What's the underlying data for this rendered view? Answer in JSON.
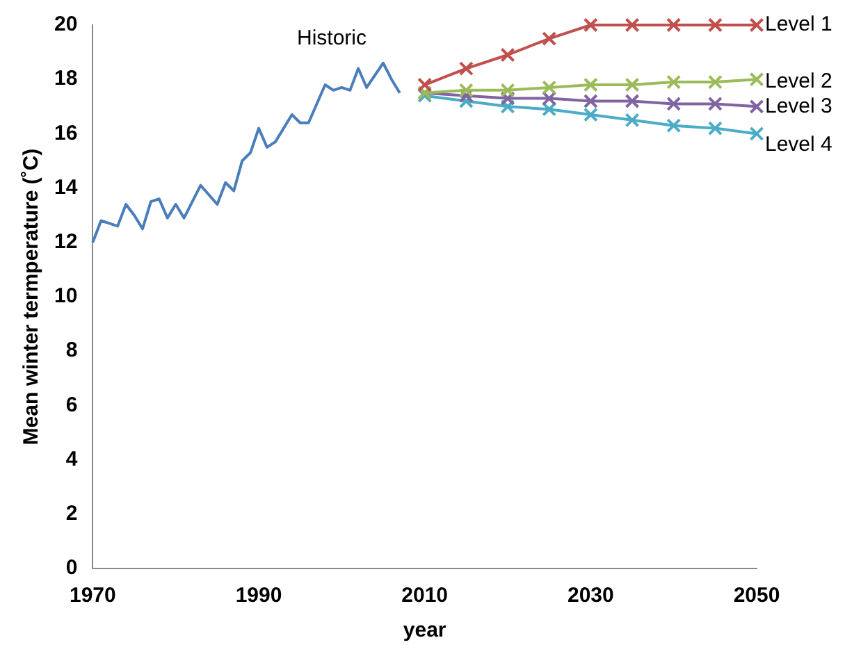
{
  "chart_data": {
    "type": "line",
    "xlabel": "year",
    "ylabel": "Mean winter termperature (˚C)",
    "xlim": [
      1970,
      2050
    ],
    "xticks": [
      1970,
      1990,
      2010,
      2030,
      2050
    ],
    "ylim": [
      0,
      20
    ],
    "yticks": [
      0,
      2,
      4,
      6,
      8,
      10,
      12,
      14,
      16,
      18,
      20
    ],
    "grid": false,
    "legend": false,
    "series": [
      {
        "name": "Historic",
        "color": "#4a7ebb",
        "marker": "none",
        "x": [
          1970,
          1971,
          1972,
          1973,
          1974,
          1975,
          1976,
          1977,
          1978,
          1979,
          1980,
          1981,
          1983,
          1985,
          1986,
          1987,
          1988,
          1989,
          1990,
          1991,
          1992,
          1994,
          1995,
          1996,
          1998,
          1999,
          2000,
          2001,
          2002,
          2003,
          2005,
          2006,
          2007
        ],
        "values": [
          12.0,
          12.8,
          12.7,
          12.6,
          13.4,
          13.0,
          12.5,
          13.5,
          13.6,
          12.9,
          13.4,
          12.9,
          14.1,
          13.4,
          14.2,
          13.9,
          15.0,
          15.3,
          16.2,
          15.5,
          15.7,
          16.7,
          16.4,
          16.4,
          17.8,
          17.6,
          17.7,
          17.6,
          18.4,
          17.7,
          18.6,
          18.0,
          17.5
        ]
      },
      {
        "name": "Level 1",
        "color": "#c0504d",
        "marker": "cross",
        "x": [
          2010,
          2015,
          2020,
          2025,
          2030,
          2035,
          2040,
          2045,
          2050
        ],
        "values": [
          17.8,
          18.4,
          18.9,
          19.5,
          20.0,
          20.0,
          20.0,
          20.0,
          20.0
        ]
      },
      {
        "name": "Level 2",
        "color": "#9bbb59",
        "marker": "cross",
        "x": [
          2010,
          2015,
          2020,
          2025,
          2030,
          2035,
          2040,
          2045,
          2050
        ],
        "values": [
          17.5,
          17.6,
          17.6,
          17.7,
          17.8,
          17.8,
          17.9,
          17.9,
          18.0
        ]
      },
      {
        "name": "Level 3",
        "color": "#8064a2",
        "marker": "cross",
        "x": [
          2010,
          2015,
          2020,
          2025,
          2030,
          2035,
          2040,
          2045,
          2050
        ],
        "values": [
          17.5,
          17.4,
          17.3,
          17.3,
          17.2,
          17.2,
          17.1,
          17.1,
          17.0
        ]
      },
      {
        "name": "Level 4",
        "color": "#4bacc6",
        "marker": "cross",
        "x": [
          2010,
          2015,
          2020,
          2025,
          2030,
          2035,
          2040,
          2045,
          2050
        ],
        "values": [
          17.4,
          17.2,
          17.0,
          16.9,
          16.7,
          16.5,
          16.3,
          16.2,
          16.0
        ]
      }
    ]
  }
}
